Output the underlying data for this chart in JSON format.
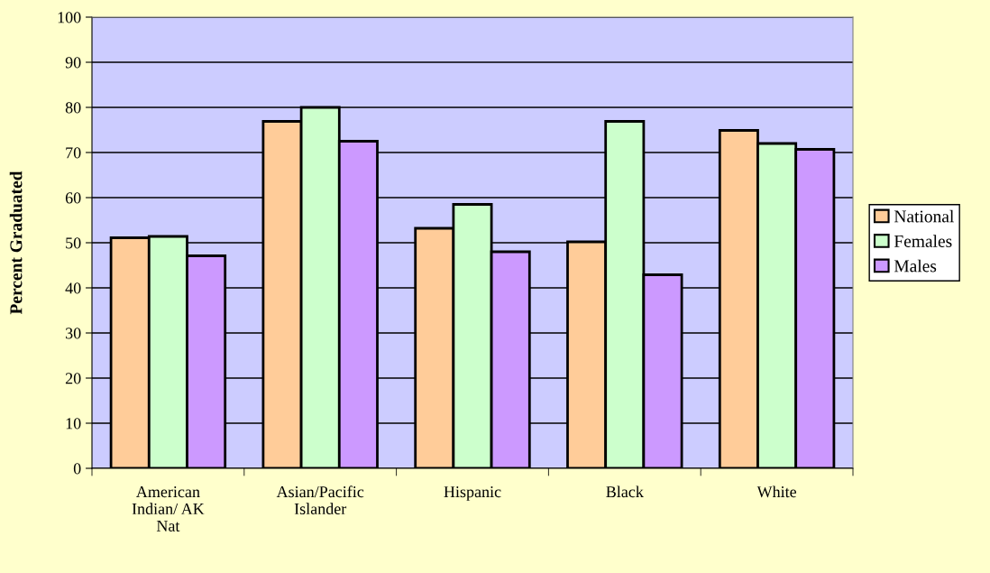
{
  "chart_data": {
    "type": "bar",
    "ylabel": "Percent Graduated",
    "categories": [
      "American\nIndian/ AK\nNat",
      "Asian/Pacific\nIslander",
      "Hispanic",
      "Black",
      "White"
    ],
    "series": [
      {
        "name": "National",
        "color": "#ffcc99",
        "values": [
          51.1,
          76.9,
          53.2,
          50.2,
          74.9
        ]
      },
      {
        "name": "Females",
        "color": "#ccffcc",
        "values": [
          51.4,
          80,
          58.5,
          76.9,
          72
        ]
      },
      {
        "name": "Males",
        "color": "#cc99ff",
        "values": [
          47.1,
          72.5,
          48,
          42.9,
          70.7
        ]
      }
    ],
    "ylim": [
      0,
      100
    ],
    "yticks": [
      0,
      10,
      20,
      30,
      40,
      50,
      60,
      70,
      80,
      90,
      100
    ],
    "grid": "y",
    "legend": "right"
  }
}
